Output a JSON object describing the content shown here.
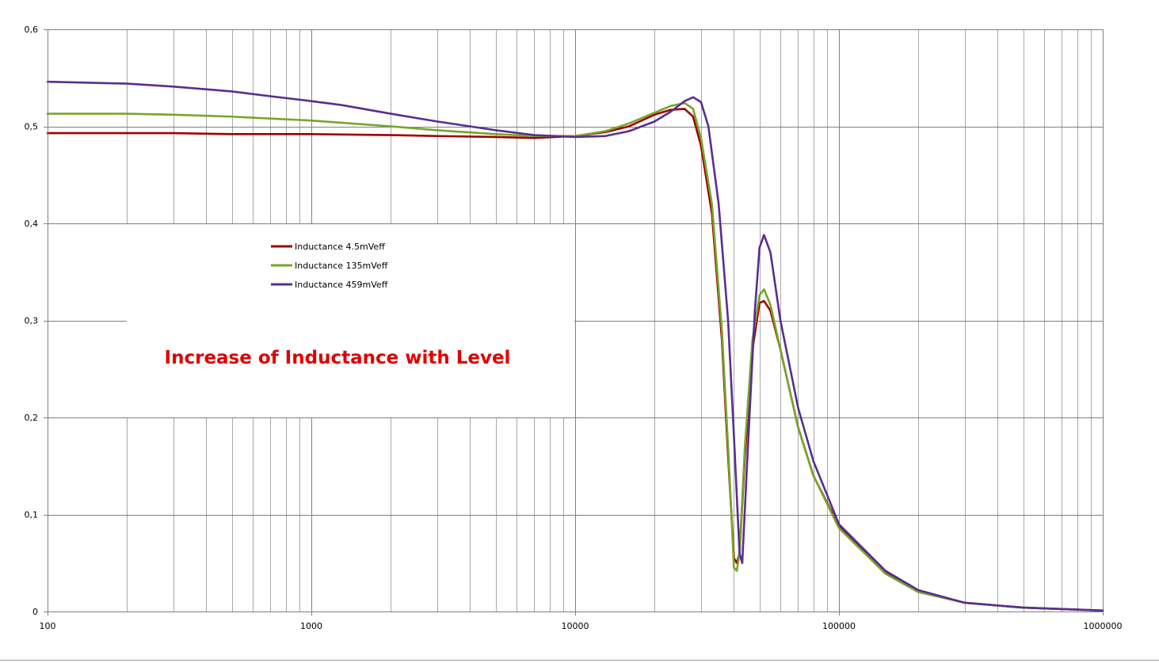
{
  "chart_data": {
    "type": "line",
    "title": "Increase of Inductance with Level",
    "title_color": "#e00000",
    "xlabel": "",
    "ylabel": "",
    "x_scale": "log",
    "xlim": [
      100,
      1000000
    ],
    "ylim": [
      0,
      0.6
    ],
    "x_ticks": [
      "100",
      "1000",
      "10000",
      "100000",
      "1000000"
    ],
    "y_ticks": [
      "0",
      "0,1",
      "0,2",
      "0,3",
      "0,4",
      "0,5",
      "0,6"
    ],
    "grid": true,
    "legend": "inside-left",
    "series": [
      {
        "name": "Inductance 4.5mVeff",
        "color": "#a00000",
        "points": [
          [
            100,
            0.493
          ],
          [
            150,
            0.493
          ],
          [
            200,
            0.493
          ],
          [
            300,
            0.493
          ],
          [
            500,
            0.492
          ],
          [
            1000,
            0.492
          ],
          [
            2000,
            0.491
          ],
          [
            3000,
            0.49
          ],
          [
            5000,
            0.489
          ],
          [
            7000,
            0.488
          ],
          [
            10000,
            0.49
          ],
          [
            13000,
            0.494
          ],
          [
            16000,
            0.5
          ],
          [
            20000,
            0.512
          ],
          [
            23000,
            0.517
          ],
          [
            26000,
            0.518
          ],
          [
            28000,
            0.51
          ],
          [
            30000,
            0.48
          ],
          [
            33000,
            0.41
          ],
          [
            36000,
            0.28
          ],
          [
            38000,
            0.16
          ],
          [
            40000,
            0.055
          ],
          [
            41000,
            0.05
          ],
          [
            42000,
            0.06
          ],
          [
            44000,
            0.16
          ],
          [
            47000,
            0.27
          ],
          [
            50000,
            0.318
          ],
          [
            52000,
            0.32
          ],
          [
            55000,
            0.31
          ],
          [
            60000,
            0.27
          ],
          [
            70000,
            0.19
          ],
          [
            80000,
            0.14
          ],
          [
            100000,
            0.088
          ],
          [
            150000,
            0.04
          ],
          [
            200000,
            0.021
          ],
          [
            300000,
            0.009
          ],
          [
            500000,
            0.004
          ],
          [
            1000000,
            0.001
          ]
        ]
      },
      {
        "name": "Inductance 135mVeff",
        "color": "#76a52a",
        "points": [
          [
            100,
            0.513
          ],
          [
            200,
            0.513
          ],
          [
            300,
            0.512
          ],
          [
            500,
            0.51
          ],
          [
            700,
            0.508
          ],
          [
            1000,
            0.506
          ],
          [
            2000,
            0.5
          ],
          [
            3000,
            0.496
          ],
          [
            5000,
            0.492
          ],
          [
            7000,
            0.49
          ],
          [
            10000,
            0.49
          ],
          [
            13000,
            0.495
          ],
          [
            16000,
            0.503
          ],
          [
            20000,
            0.514
          ],
          [
            23000,
            0.521
          ],
          [
            26000,
            0.524
          ],
          [
            28000,
            0.518
          ],
          [
            30000,
            0.488
          ],
          [
            33000,
            0.42
          ],
          [
            36000,
            0.29
          ],
          [
            38000,
            0.17
          ],
          [
            40000,
            0.045
          ],
          [
            41000,
            0.042
          ],
          [
            42000,
            0.06
          ],
          [
            44000,
            0.17
          ],
          [
            47000,
            0.28
          ],
          [
            50000,
            0.326
          ],
          [
            52000,
            0.332
          ],
          [
            55000,
            0.316
          ],
          [
            60000,
            0.27
          ],
          [
            70000,
            0.19
          ],
          [
            80000,
            0.14
          ],
          [
            100000,
            0.086
          ],
          [
            150000,
            0.039
          ],
          [
            200000,
            0.02
          ],
          [
            300000,
            0.009
          ],
          [
            500000,
            0.004
          ],
          [
            1000000,
            0.001
          ]
        ]
      },
      {
        "name": "Inductance 459mVeff",
        "color": "#5a2d91",
        "points": [
          [
            100,
            0.546
          ],
          [
            200,
            0.544
          ],
          [
            300,
            0.541
          ],
          [
            500,
            0.536
          ],
          [
            700,
            0.531
          ],
          [
            1000,
            0.526
          ],
          [
            1300,
            0.522
          ],
          [
            2000,
            0.513
          ],
          [
            3000,
            0.505
          ],
          [
            5000,
            0.496
          ],
          [
            7000,
            0.491
          ],
          [
            10000,
            0.489
          ],
          [
            13000,
            0.49
          ],
          [
            16000,
            0.495
          ],
          [
            20000,
            0.505
          ],
          [
            23000,
            0.515
          ],
          [
            26000,
            0.526
          ],
          [
            28000,
            0.53
          ],
          [
            30000,
            0.525
          ],
          [
            32000,
            0.5
          ],
          [
            35000,
            0.42
          ],
          [
            38000,
            0.3
          ],
          [
            40000,
            0.18
          ],
          [
            42000,
            0.06
          ],
          [
            43000,
            0.05
          ],
          [
            45000,
            0.16
          ],
          [
            48000,
            0.31
          ],
          [
            50000,
            0.375
          ],
          [
            52000,
            0.388
          ],
          [
            55000,
            0.37
          ],
          [
            60000,
            0.3
          ],
          [
            70000,
            0.21
          ],
          [
            80000,
            0.155
          ],
          [
            100000,
            0.09
          ],
          [
            150000,
            0.042
          ],
          [
            200000,
            0.022
          ],
          [
            300000,
            0.009
          ],
          [
            500000,
            0.004
          ],
          [
            1000000,
            0.001
          ]
        ]
      }
    ]
  }
}
